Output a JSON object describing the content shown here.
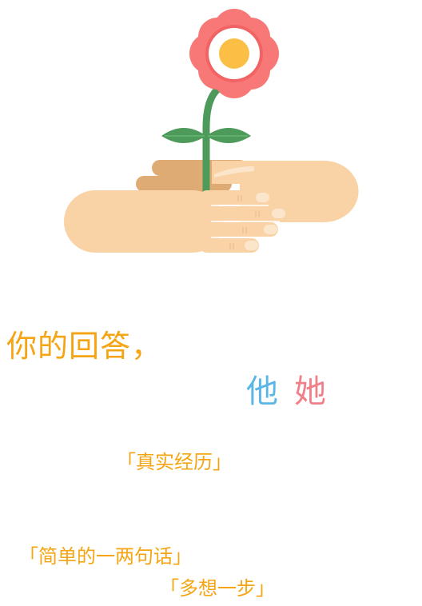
{
  "headline": "你的回答，",
  "pronouns": {
    "he": "他",
    "she": "她"
  },
  "tags": {
    "real_experience": "「真实经历」",
    "simple_words": "「简单的一两句话」",
    "think_ahead": "「多想一步」"
  },
  "colors": {
    "accent_orange": "#f5a513",
    "he_blue": "#5ab6e6",
    "she_pink": "#f07f8a",
    "petal": "#f87878",
    "stem": "#4e9a5a",
    "skin_light": "#f9d3a6",
    "skin_dark": "#deab74"
  },
  "icons": {
    "illustration": "hands-holding-flower-icon"
  }
}
